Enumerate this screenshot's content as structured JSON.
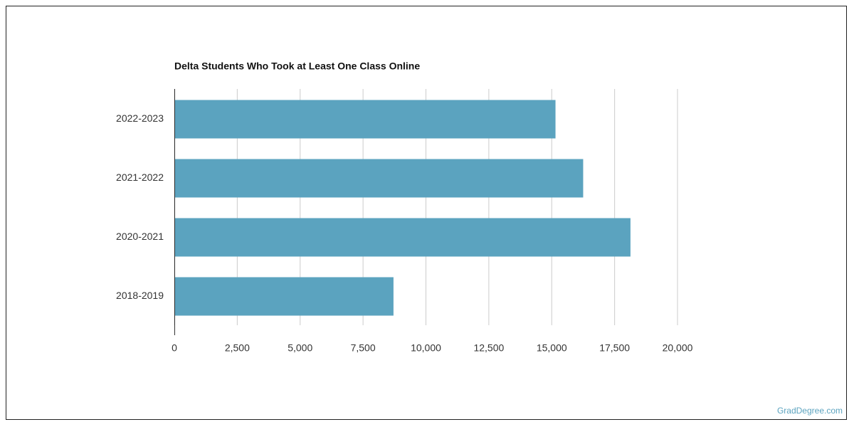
{
  "chart_data": {
    "type": "bar",
    "orientation": "horizontal",
    "title": "Delta Students Who Took at Least One Class Online",
    "categories": [
      "2022-2023",
      "2021-2022",
      "2020-2021",
      "2018-2019"
    ],
    "values": [
      15150,
      16250,
      18130,
      8710
    ],
    "color": "#5ba3bf",
    "xlim": [
      0,
      20000
    ],
    "xticks": [
      0,
      {
        "value": 2500,
        "label": "2,500"
      },
      {
        "value": 5000,
        "label": "5,000"
      },
      {
        "value": 7500,
        "label": "7,500"
      },
      {
        "value": 10000,
        "label": "10,000"
      },
      {
        "value": 12500,
        "label": "12,500"
      },
      {
        "value": 15000,
        "label": "15,000"
      },
      {
        "value": 17500,
        "label": "17,500"
      },
      {
        "value": 20000,
        "label": "20,000"
      }
    ],
    "grid": true
  },
  "watermark": "GradDegree.com"
}
